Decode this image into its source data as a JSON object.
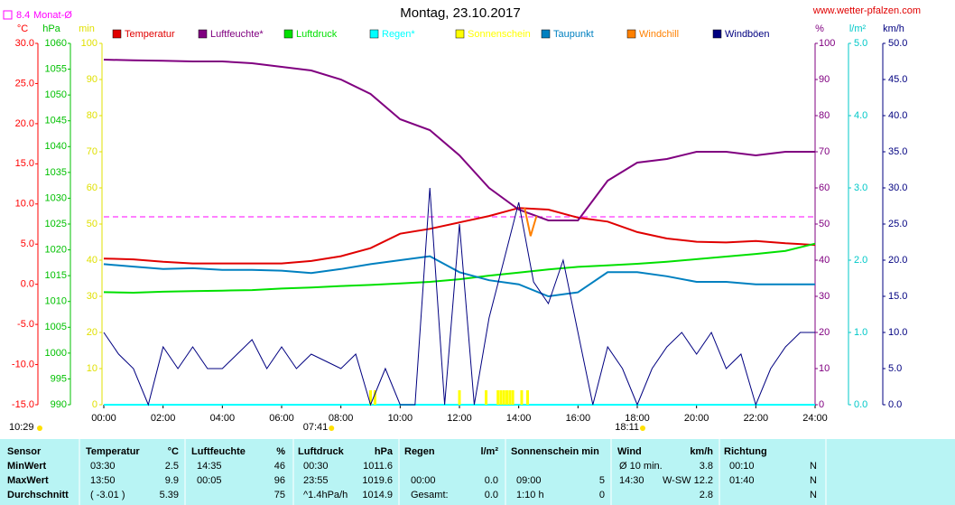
{
  "chart_data": {
    "type": "line",
    "title": "Montag, 23.10.2017",
    "source": "www.wetter-pfalzen.com",
    "monthly_mean": {
      "value": 8.4,
      "label": "Monat-Ø",
      "axis": 0,
      "color": "#ff00ff"
    },
    "xlim": [
      0,
      24
    ],
    "xticks": [
      {
        "value": 0,
        "label": "00:00"
      },
      {
        "value": 2,
        "label": "02:00"
      },
      {
        "value": 4,
        "label": "04:00"
      },
      {
        "value": 6,
        "label": "06:00"
      },
      {
        "value": 8,
        "label": "08:00"
      },
      {
        "value": 10,
        "label": "10:00"
      },
      {
        "value": 12,
        "label": "12:00"
      },
      {
        "value": 14,
        "label": "14:00"
      },
      {
        "value": 16,
        "label": "16:00"
      },
      {
        "value": 18,
        "label": "18:00"
      },
      {
        "value": 20,
        "label": "20:00"
      },
      {
        "value": 22,
        "label": "22:00"
      },
      {
        "value": 24,
        "label": "24:00"
      }
    ],
    "sun": {
      "daylength": "10:29",
      "rise": {
        "value": 7.683,
        "label": "07:41"
      },
      "set": {
        "value": 18.183,
        "label": "18:11"
      }
    },
    "yaxes": [
      {
        "unit": "°C",
        "color": "#ff0000",
        "lim": [
          -15,
          30
        ],
        "ticks": [
          {
            "value": 30,
            "label": "30.0"
          },
          {
            "value": 25,
            "label": "25.0"
          },
          {
            "value": 20,
            "label": "20.0"
          },
          {
            "value": 15,
            "label": "15.0"
          },
          {
            "value": 10,
            "label": "10.0"
          },
          {
            "value": 5,
            "label": "5.0"
          },
          {
            "value": 0,
            "label": "0.0"
          },
          {
            "value": -5,
            "label": "-5.0"
          },
          {
            "value": -10,
            "label": "-10.0"
          },
          {
            "value": -15,
            "label": "-15.0"
          }
        ]
      },
      {
        "unit": "hPa",
        "color": "#00c000",
        "lim": [
          990,
          1060
        ],
        "ticks": [
          1060,
          1055,
          1050,
          1045,
          1040,
          1035,
          1030,
          1025,
          1020,
          1015,
          1010,
          1005,
          1000,
          995,
          990
        ]
      },
      {
        "unit": "min",
        "color": "#e0e000",
        "lim": [
          0,
          100
        ],
        "ticks": [
          100,
          90,
          80,
          70,
          60,
          50,
          40,
          30,
          20,
          10,
          0
        ]
      },
      {
        "unit": "%",
        "color": "#800080",
        "lim": [
          0,
          100
        ],
        "ticks": [
          100,
          90,
          80,
          70,
          60,
          50,
          40,
          30,
          20,
          10,
          0
        ]
      },
      {
        "unit": "l/m²",
        "color": "#00c8c8",
        "lim": [
          0,
          5
        ],
        "ticks": [
          {
            "value": 5,
            "label": "5.0"
          },
          {
            "value": 4,
            "label": "4.0"
          },
          {
            "value": 3,
            "label": "3.0"
          },
          {
            "value": 2,
            "label": "2.0"
          },
          {
            "value": 1,
            "label": "1.0"
          },
          {
            "value": 0,
            "label": "0.0"
          }
        ]
      },
      {
        "unit": "km/h",
        "color": "#000080",
        "lim": [
          0,
          50
        ],
        "ticks": [
          {
            "value": 50,
            "label": "50.0"
          },
          {
            "value": 45,
            "label": "45.0"
          },
          {
            "value": 40,
            "label": "40.0"
          },
          {
            "value": 35,
            "label": "35.0"
          },
          {
            "value": 30,
            "label": "30.0"
          },
          {
            "value": 25,
            "label": "25.0"
          },
          {
            "value": 20,
            "label": "20.0"
          },
          {
            "value": 15,
            "label": "15.0"
          },
          {
            "value": 10,
            "label": "10.0"
          },
          {
            "value": 5,
            "label": "5.0"
          },
          {
            "value": 0,
            "label": "0.0"
          }
        ]
      }
    ],
    "series": [
      {
        "name": "Temperatur",
        "color": "#e00000",
        "axis": 0,
        "x": [
          0,
          1,
          2,
          3,
          4,
          5,
          6,
          7,
          8,
          9,
          10,
          11,
          12,
          13,
          14,
          15,
          16,
          17,
          18,
          19,
          20,
          21,
          22,
          23,
          24
        ],
        "values": [
          3.2,
          3.1,
          2.8,
          2.6,
          2.6,
          2.6,
          2.6,
          2.9,
          3.5,
          4.5,
          6.3,
          6.9,
          7.7,
          8.5,
          9.5,
          9.3,
          8.3,
          7.8,
          6.5,
          5.7,
          5.3,
          5.2,
          5.4,
          5.1,
          4.9
        ]
      },
      {
        "name": "Luftfeuchte*",
        "color": "#800080",
        "axis": 3,
        "x": [
          0,
          1,
          2,
          3,
          4,
          5,
          6,
          7,
          8,
          9,
          10,
          11,
          12,
          13,
          14,
          15,
          16,
          17,
          18,
          19,
          20,
          21,
          22,
          23,
          24
        ],
        "values": [
          95.5,
          95.3,
          95.2,
          95,
          95,
          94.5,
          93.5,
          92.5,
          90,
          86,
          79,
          76,
          69,
          60,
          54,
          51,
          51,
          62,
          67,
          68,
          70,
          70,
          69,
          70,
          70
        ]
      },
      {
        "name": "Luftdruck",
        "color": "#00e000",
        "axis": 1,
        "x": [
          0,
          1,
          2,
          3,
          4,
          5,
          6,
          7,
          8,
          9,
          10,
          11,
          12,
          13,
          14,
          15,
          16,
          17,
          18,
          19,
          20,
          21,
          22,
          23,
          24
        ],
        "values": [
          1011.8,
          1011.7,
          1011.9,
          1012,
          1012.1,
          1012.2,
          1012.5,
          1012.7,
          1013,
          1013.2,
          1013.5,
          1013.8,
          1014.3,
          1015,
          1015.6,
          1016.2,
          1016.7,
          1017,
          1017.3,
          1017.7,
          1018.2,
          1018.7,
          1019.2,
          1019.8,
          1021.2
        ]
      },
      {
        "name": "Regen*",
        "color": "#00ffff",
        "axis": 4,
        "x": [
          0,
          24
        ],
        "values": [
          0,
          0
        ]
      },
      {
        "name": "Sonnenschein",
        "color": "#ffff00",
        "axis": 2,
        "kind": "bar",
        "x": [
          9.0,
          9.15,
          12.0,
          12.9,
          13.3,
          13.4,
          13.5,
          13.6,
          13.7,
          13.8,
          14.1,
          14.3
        ],
        "values": [
          4,
          4,
          4,
          4,
          4,
          4,
          4,
          4,
          4,
          4,
          4,
          4
        ]
      },
      {
        "name": "Taupunkt",
        "color": "#0080c0",
        "axis": 0,
        "x": [
          0,
          1,
          2,
          3,
          4,
          5,
          6,
          7,
          8,
          9,
          10,
          11,
          12,
          13,
          14,
          15,
          16,
          17,
          18,
          19,
          20,
          21,
          22,
          23,
          24
        ],
        "values": [
          2.5,
          2.2,
          1.9,
          2,
          1.8,
          1.8,
          1.7,
          1.4,
          1.9,
          2.5,
          3,
          3.5,
          1.5,
          0.5,
          0,
          -1.5,
          -1,
          1.5,
          1.5,
          1,
          0.3,
          0.3,
          0,
          0,
          0
        ]
      },
      {
        "name": "Windchill",
        "color": "#ff8000",
        "axis": 0,
        "x": [
          14.2,
          14.4,
          14.6
        ],
        "values": [
          9.5,
          6,
          8.5
        ]
      },
      {
        "name": "Windböen",
        "color": "#000080",
        "axis": 5,
        "x": [
          0,
          0.5,
          1,
          1.5,
          2,
          2.5,
          3,
          3.5,
          4,
          4.5,
          5,
          5.5,
          6,
          6.5,
          7,
          7.5,
          8,
          8.5,
          9,
          9.5,
          10,
          10.5,
          11,
          11.5,
          12,
          12.5,
          13,
          13.5,
          14,
          14.5,
          15,
          15.5,
          16,
          16.5,
          17,
          17.5,
          18,
          18.5,
          19,
          19.5,
          20,
          20.5,
          21,
          21.5,
          22,
          22.5,
          23,
          23.5,
          24
        ],
        "values": [
          10,
          7,
          5,
          0,
          8,
          5,
          8,
          5,
          5,
          7,
          9,
          5,
          8,
          5,
          7,
          6,
          5,
          7,
          0,
          5,
          0,
          0,
          30,
          0,
          25,
          0,
          12,
          20,
          28,
          17,
          14,
          20,
          10,
          0,
          8,
          5,
          0,
          5,
          8,
          10,
          7,
          10,
          5,
          7,
          0,
          5,
          8,
          10,
          10
        ]
      }
    ]
  },
  "table": {
    "header": [
      {
        "name": "Sensor"
      },
      {
        "name": "Temperatur",
        "unit": "°C"
      },
      {
        "name": "Luftfeuchte",
        "unit": "%"
      },
      {
        "name": "Luftdruck",
        "unit": "hPa"
      },
      {
        "name": "Regen",
        "unit": "l/m²"
      },
      {
        "name": "Sonnenschein min"
      },
      {
        "name": "Wind",
        "unit": "km/h"
      },
      {
        "name": "Richtung"
      }
    ],
    "rows": [
      {
        "label": "MinWert",
        "cells": [
          {
            "t": "03:30",
            "v": "2.5"
          },
          {
            "t": "14:35",
            "v": "46"
          },
          {
            "t": "00:30",
            "v": "1011.6"
          },
          null,
          null,
          {
            "t": "Ø 10 min.",
            "v": "3.8"
          },
          {
            "t": "00:10",
            "v": "N"
          }
        ]
      },
      {
        "label": "MaxWert",
        "cells": [
          {
            "t": "13:50",
            "v": "9.9"
          },
          {
            "t": "00:05",
            "v": "96"
          },
          {
            "t": "23:55",
            "v": "1019.6"
          },
          {
            "t": "00:00",
            "v": "0.0"
          },
          {
            "t": "09:00",
            "v": "5"
          },
          {
            "t": "14:30",
            "v": "W-SW 12.2"
          },
          {
            "t": "01:40",
            "v": "N"
          }
        ]
      },
      {
        "label": "Durchschnitt",
        "cells": [
          {
            "t": "( -3.01 )",
            "v": "5.39"
          },
          {
            "v": "75"
          },
          {
            "t": "^1.4hPa/h",
            "v": "1014.9"
          },
          {
            "t": "Gesamt:",
            "v": "0.0"
          },
          {
            "t": "1:10 h",
            "v": "0"
          },
          {
            "v": "2.8"
          },
          {
            "v": "N"
          }
        ]
      }
    ]
  }
}
